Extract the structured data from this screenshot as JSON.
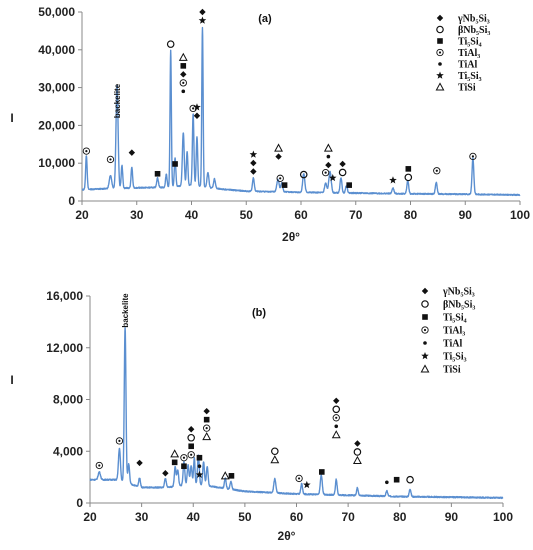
{
  "symbols": {
    "gamma": {
      "shape": "diamond",
      "label": "γNb₅Si₃"
    },
    "beta": {
      "shape": "circle",
      "label": "βNb₅Si₃"
    },
    "ti5si4": {
      "shape": "square",
      "label": "Ti₅Si₄"
    },
    "tial3": {
      "shape": "dotcircle",
      "label": "TiAl₃"
    },
    "tial": {
      "shape": "dot",
      "label": "TiAl"
    },
    "ti5si3": {
      "shape": "star",
      "label": "Ti₅Si₃"
    },
    "tisi": {
      "shape": "triangle",
      "label": "TiSi"
    }
  },
  "legend_order": [
    "gamma",
    "beta",
    "ti5si4",
    "tial3",
    "tial",
    "ti5si3",
    "tisi"
  ],
  "line_color": "#5b8fd0",
  "chart_data": [
    {
      "type": "line",
      "panel_label": "(a)",
      "xlabel": "2θ°",
      "ylabel": "I",
      "xlim": [
        20,
        100
      ],
      "ylim": [
        0,
        50000
      ],
      "xticks": [
        20,
        30,
        40,
        50,
        60,
        70,
        80,
        90,
        100
      ],
      "yticks": [
        0,
        10000,
        20000,
        30000,
        40000,
        50000
      ],
      "ytick_labels": [
        "0",
        "10,000",
        "20,000",
        "30,000",
        "40,000",
        "50,000"
      ],
      "baseline": [
        [
          20,
          3000
        ],
        [
          25,
          3300
        ],
        [
          30,
          3500
        ],
        [
          35,
          3600
        ],
        [
          40,
          4200
        ],
        [
          45,
          3200
        ],
        [
          50,
          2600
        ],
        [
          60,
          2300
        ],
        [
          70,
          2100
        ],
        [
          80,
          1900
        ],
        [
          90,
          1800
        ],
        [
          100,
          1600
        ]
      ],
      "peaks": [
        [
          20.8,
          9000,
          0.25
        ],
        [
          25.2,
          3500,
          0.4
        ],
        [
          26.4,
          27000,
          0.35
        ],
        [
          27.3,
          6000,
          0.25
        ],
        [
          29.1,
          5500,
          0.25
        ],
        [
          33.8,
          2500,
          0.3
        ],
        [
          35.4,
          3500,
          0.25
        ],
        [
          36.2,
          36000,
          0.22
        ],
        [
          37.0,
          7500,
          0.25
        ],
        [
          38.5,
          14000,
          0.3
        ],
        [
          39.2,
          9000,
          0.25
        ],
        [
          40.3,
          19000,
          0.25
        ],
        [
          41.0,
          13000,
          0.25
        ],
        [
          42.0,
          42000,
          0.22
        ],
        [
          43.0,
          4000,
          0.3
        ],
        [
          44.2,
          2500,
          0.3
        ],
        [
          51.3,
          3500,
          0.3
        ],
        [
          55.8,
          3200,
          0.4
        ],
        [
          56.5,
          2500,
          0.3
        ],
        [
          60.5,
          5000,
          0.35
        ],
        [
          64.5,
          2500,
          0.35
        ],
        [
          65.3,
          5500,
          0.4
        ],
        [
          67.3,
          4000,
          0.3
        ],
        [
          68.3,
          2000,
          0.3
        ],
        [
          76.8,
          1500,
          0.3
        ],
        [
          79.5,
          3500,
          0.3
        ],
        [
          84.7,
          3000,
          0.3
        ],
        [
          91.4,
          9500,
          0.3
        ]
      ],
      "annotations": [
        {
          "x": 26.4,
          "y": 31000,
          "text": "backelite",
          "rotate": -90
        },
        {
          "x": 20.8,
          "y": 13200,
          "marks": [
            "tial3"
          ]
        },
        {
          "x": 25.2,
          "y": 11000,
          "marks": [
            "tial3"
          ]
        },
        {
          "x": 29.1,
          "y": 12800,
          "marks": [
            "gamma"
          ]
        },
        {
          "x": 33.8,
          "y": 7200,
          "marks": [
            "ti5si4"
          ]
        },
        {
          "x": 37.0,
          "y": 9800,
          "marks": [
            "ti5si4"
          ]
        },
        {
          "x": 36.2,
          "y": 41500,
          "marks": [
            "beta"
          ]
        },
        {
          "x": 38.5,
          "y": 38000,
          "marks": [
            "tisi",
            "ti5si4",
            "gamma",
            "tial3",
            "tial"
          ]
        },
        {
          "x": 40.3,
          "y": 24500,
          "marks": [
            "tial3"
          ]
        },
        {
          "x": 41.0,
          "y": 24800,
          "marks": [
            "ti5si3",
            "gamma"
          ]
        },
        {
          "x": 42.0,
          "y": 50000,
          "marks": [
            "gamma",
            "ti5si3"
          ]
        },
        {
          "x": 51.3,
          "y": 12300,
          "marks": [
            "ti5si3",
            "gamma",
            "gamma"
          ]
        },
        {
          "x": 55.9,
          "y": 14000,
          "marks": [
            "tisi",
            "gamma"
          ]
        },
        {
          "x": 56.2,
          "y": 6000,
          "marks": [
            "tial3"
          ]
        },
        {
          "x": 57.0,
          "y": 4200,
          "marks": [
            "ti5si4"
          ]
        },
        {
          "x": 60.5,
          "y": 7000,
          "marks": [
            "beta"
          ]
        },
        {
          "x": 65.0,
          "y": 14000,
          "marks": [
            "tisi",
            "tial",
            "gamma"
          ]
        },
        {
          "x": 64.5,
          "y": 7500,
          "marks": [
            "tial3"
          ]
        },
        {
          "x": 65.8,
          "y": 6100,
          "marks": [
            "ti5si3"
          ]
        },
        {
          "x": 67.6,
          "y": 9800,
          "marks": [
            "gamma",
            "beta"
          ]
        },
        {
          "x": 68.8,
          "y": 4200,
          "marks": [
            "ti5si4"
          ]
        },
        {
          "x": 76.8,
          "y": 5500,
          "marks": [
            "ti5si3"
          ]
        },
        {
          "x": 79.6,
          "y": 8500,
          "marks": [
            "ti5si4",
            "beta"
          ]
        },
        {
          "x": 84.8,
          "y": 8000,
          "marks": [
            "tial3"
          ]
        },
        {
          "x": 91.4,
          "y": 11800,
          "marks": [
            "tial3"
          ]
        }
      ]
    },
    {
      "type": "line",
      "panel_label": "(b)",
      "xlabel": "2θ°",
      "ylabel": "I",
      "xlim": [
        20,
        100
      ],
      "ylim": [
        0,
        16000
      ],
      "xticks": [
        20,
        30,
        40,
        50,
        60,
        70,
        80,
        90,
        100
      ],
      "yticks": [
        0,
        4000,
        8000,
        12000,
        16000
      ],
      "ytick_labels": [
        "0",
        "4,000",
        "8,000",
        "12,000",
        "16,000"
      ],
      "baseline": [
        [
          20,
          1800
        ],
        [
          25,
          1800
        ],
        [
          30,
          1200
        ],
        [
          35,
          1200
        ],
        [
          40,
          1500
        ],
        [
          45,
          1200
        ],
        [
          50,
          900
        ],
        [
          60,
          700
        ],
        [
          70,
          600
        ],
        [
          80,
          500
        ],
        [
          90,
          450
        ],
        [
          100,
          400
        ]
      ],
      "peaks": [
        [
          21.8,
          600,
          0.4
        ],
        [
          25.7,
          2500,
          0.35
        ],
        [
          26.8,
          12000,
          0.3
        ],
        [
          27.5,
          1500,
          0.3
        ],
        [
          29.6,
          700,
          0.3
        ],
        [
          34.6,
          700,
          0.3
        ],
        [
          36.5,
          1500,
          0.3
        ],
        [
          37.0,
          1200,
          0.3
        ],
        [
          38.2,
          1800,
          0.3
        ],
        [
          39.0,
          1500,
          0.3
        ],
        [
          39.6,
          1400,
          0.3
        ],
        [
          40.2,
          2000,
          0.25
        ],
        [
          41.0,
          2300,
          0.3
        ],
        [
          42.0,
          1800,
          0.3
        ],
        [
          42.7,
          1500,
          0.3
        ],
        [
          46.2,
          800,
          0.3
        ],
        [
          47.3,
          600,
          0.3
        ],
        [
          55.8,
          1100,
          0.35
        ],
        [
          61.0,
          800,
          0.3
        ],
        [
          64.8,
          1500,
          0.35
        ],
        [
          67.7,
          1200,
          0.3
        ],
        [
          71.8,
          600,
          0.3
        ],
        [
          77.5,
          400,
          0.3
        ],
        [
          82.0,
          600,
          0.3
        ]
      ],
      "annotations": [
        {
          "x": 26.8,
          "y": 16200,
          "text": "backelite",
          "rotate": -90
        },
        {
          "x": 21.8,
          "y": 2900,
          "marks": [
            "tial3"
          ]
        },
        {
          "x": 25.7,
          "y": 4800,
          "marks": [
            "tial3"
          ]
        },
        {
          "x": 29.6,
          "y": 3100,
          "marks": [
            "gamma"
          ]
        },
        {
          "x": 34.6,
          "y": 2300,
          "marks": [
            "gamma"
          ]
        },
        {
          "x": 36.4,
          "y": 3800,
          "marks": [
            "tisi",
            "ti5si4"
          ]
        },
        {
          "x": 38.2,
          "y": 3500,
          "marks": [
            "tial3",
            "ti5si4"
          ]
        },
        {
          "x": 39.6,
          "y": 5700,
          "marks": [
            "gamma",
            "beta",
            "ti5si4",
            "tial3"
          ]
        },
        {
          "x": 41.2,
          "y": 3500,
          "marks": [
            "ti5si4",
            "tial",
            "ti5si3"
          ]
        },
        {
          "x": 42.6,
          "y": 7100,
          "marks": [
            "gamma",
            "ti5si4",
            "tial3",
            "tisi"
          ]
        },
        {
          "x": 46.2,
          "y": 2100,
          "marks": [
            "tisi"
          ]
        },
        {
          "x": 47.4,
          "y": 2100,
          "marks": [
            "ti5si4"
          ]
        },
        {
          "x": 55.8,
          "y": 4000,
          "marks": [
            "beta",
            "tisi"
          ]
        },
        {
          "x": 60.5,
          "y": 1900,
          "marks": [
            "tial3"
          ]
        },
        {
          "x": 62.0,
          "y": 1400,
          "marks": [
            "ti5si3"
          ]
        },
        {
          "x": 64.9,
          "y": 2400,
          "marks": [
            "ti5si4"
          ]
        },
        {
          "x": 67.7,
          "y": 7900,
          "marks": [
            "gamma",
            "beta",
            "tial3",
            "tial",
            "tisi"
          ]
        },
        {
          "x": 71.8,
          "y": 4600,
          "marks": [
            "gamma",
            "beta",
            "tisi"
          ]
        },
        {
          "x": 77.5,
          "y": 1600,
          "marks": [
            "tial"
          ]
        },
        {
          "x": 79.4,
          "y": 1800,
          "marks": [
            "ti5si4"
          ]
        },
        {
          "x": 82.0,
          "y": 1800,
          "marks": [
            "beta"
          ]
        }
      ]
    }
  ]
}
